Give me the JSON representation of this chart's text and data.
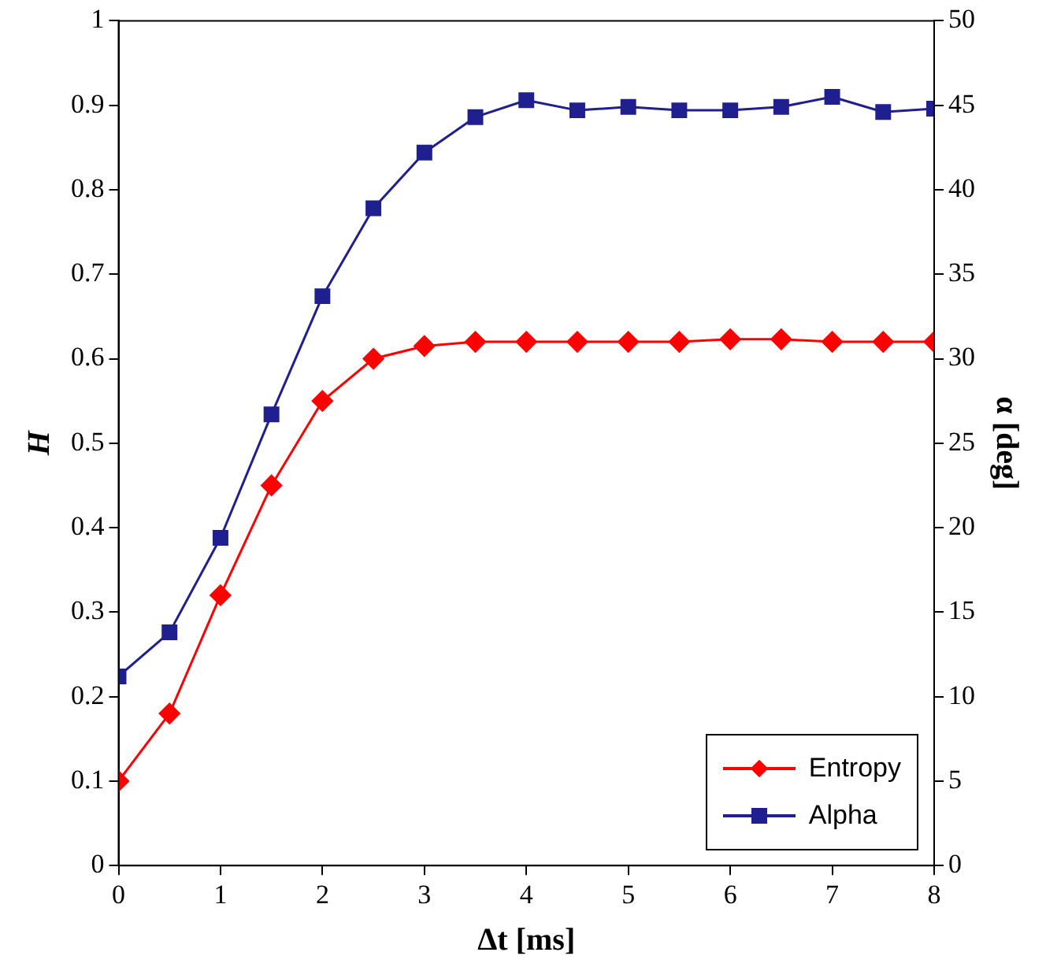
{
  "chart_data": {
    "type": "line",
    "xlabel": "Δt [ms]",
    "ylabel": "H",
    "y2label": "α [deg]",
    "x": [
      0,
      0.5,
      1,
      1.5,
      2,
      2.5,
      3,
      3.5,
      4,
      4.5,
      5,
      5.5,
      6,
      6.5,
      7,
      7.5,
      8
    ],
    "series": [
      {
        "name": "Entropy",
        "color": "#ff0000",
        "marker": "diamond",
        "values": [
          0.1,
          0.18,
          0.32,
          0.45,
          0.55,
          0.6,
          0.615,
          0.62,
          0.62,
          0.62,
          0.62,
          0.62,
          0.623,
          0.623,
          0.62,
          0.62,
          0.62
        ]
      },
      {
        "name": "Alpha",
        "color": "#1f1f8f",
        "marker": "square",
        "axis": "y2",
        "values": [
          11.2,
          13.8,
          19.4,
          26.7,
          33.7,
          38.9,
          42.2,
          44.3,
          45.3,
          44.7,
          44.9,
          44.7,
          44.7,
          44.9,
          45.5,
          44.6,
          44.8
        ]
      }
    ],
    "xlim": [
      0,
      8
    ],
    "xticks": [
      0,
      1,
      2,
      3,
      4,
      5,
      6,
      7,
      8
    ],
    "ylim": [
      0,
      1
    ],
    "yticks": [
      0,
      0.1,
      0.2,
      0.3,
      0.4,
      0.5,
      0.6,
      0.7,
      0.8,
      0.9,
      1
    ],
    "y2lim": [
      0,
      50
    ],
    "y2ticks": [
      0,
      5,
      10,
      15,
      20,
      25,
      30,
      35,
      40,
      45,
      50
    ],
    "legend": "bottom right",
    "grid": false,
    "line_style": "solid"
  }
}
